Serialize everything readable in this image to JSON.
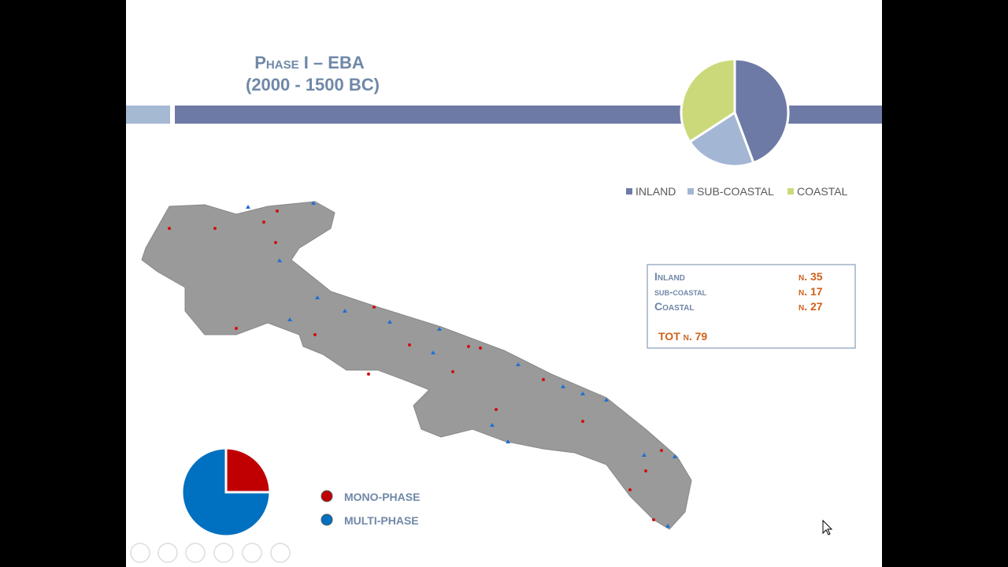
{
  "slide": {
    "title_line1": "Phase I – EBA",
    "title_line2": "(2000 - 1500 BC)",
    "box": {
      "rows": [
        [
          "Inland",
          "n. 35"
        ],
        [
          "sub-coastal",
          "n. 17"
        ],
        [
          "Coastal",
          "n. 27"
        ]
      ],
      "total": "TOT n. 79"
    }
  },
  "chart_data": [
    {
      "type": "pie",
      "categories": [
        "INLAND",
        "SUB-COASTAL",
        "COASTAL"
      ],
      "values": [
        35,
        17,
        27
      ],
      "colors": [
        "#6e7aa6",
        "#a3b6d4",
        "#ccd97a"
      ]
    },
    {
      "type": "pie",
      "categories": [
        "MONO-PHASE",
        "MULTI-PHASE"
      ],
      "values": [
        25,
        75
      ],
      "colors": [
        "#c00000",
        "#0070c0"
      ]
    }
  ]
}
